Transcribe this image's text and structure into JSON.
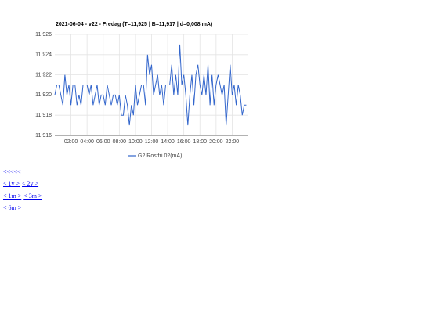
{
  "chart_data": {
    "type": "line",
    "title": "2021-06-04 - v22 - Fredag (T=11,925 | B=11,917 | d=0,008 mA)",
    "x": [
      0,
      0.25,
      0.5,
      0.75,
      1,
      1.25,
      1.5,
      1.75,
      2,
      2.25,
      2.5,
      2.75,
      3,
      3.25,
      3.5,
      3.75,
      4,
      4.25,
      4.5,
      4.75,
      5,
      5.25,
      5.5,
      5.75,
      6,
      6.25,
      6.5,
      6.75,
      7,
      7.25,
      7.5,
      7.75,
      8,
      8.25,
      8.5,
      8.75,
      9,
      9.25,
      9.5,
      9.75,
      10,
      10.25,
      10.5,
      10.75,
      11,
      11.25,
      11.5,
      11.75,
      12,
      12.25,
      12.5,
      12.75,
      13,
      13.25,
      13.5,
      13.75,
      14,
      14.25,
      14.5,
      14.75,
      15,
      15.25,
      15.5,
      15.75,
      16,
      16.25,
      16.5,
      16.75,
      17,
      17.25,
      17.5,
      17.75,
      18,
      18.25,
      18.5,
      18.75,
      19,
      19.25,
      19.5,
      19.75,
      20,
      20.25,
      20.5,
      20.75,
      21,
      21.25,
      21.5,
      21.75,
      22,
      22.25,
      22.5,
      22.75,
      23,
      23.25,
      23.5,
      23.75
    ],
    "series": [
      {
        "name": "G2 Rostfri 02(mA)",
        "color": "#3366cc",
        "values": [
          11.92,
          11.921,
          11.921,
          11.92,
          11.919,
          11.922,
          11.92,
          11.921,
          11.919,
          11.921,
          11.921,
          11.919,
          11.92,
          11.919,
          11.921,
          11.921,
          11.921,
          11.92,
          11.921,
          11.919,
          11.92,
          11.921,
          11.919,
          11.92,
          11.92,
          11.919,
          11.921,
          11.92,
          11.919,
          11.92,
          11.92,
          11.919,
          11.92,
          11.918,
          11.918,
          11.92,
          11.919,
          11.917,
          11.919,
          11.918,
          11.921,
          11.919,
          11.92,
          11.921,
          11.921,
          11.919,
          11.924,
          11.922,
          11.923,
          11.92,
          11.921,
          11.922,
          11.92,
          11.921,
          11.919,
          11.921,
          11.921,
          11.921,
          11.923,
          11.92,
          11.922,
          11.92,
          11.925,
          11.921,
          11.922,
          11.92,
          11.917,
          11.92,
          11.922,
          11.919,
          11.922,
          11.923,
          11.921,
          11.92,
          11.922,
          11.92,
          11.923,
          11.919,
          11.922,
          11.919,
          11.921,
          11.922,
          11.921,
          11.92,
          11.921,
          11.917,
          11.92,
          11.923,
          11.92,
          11.921,
          11.919,
          11.921,
          11.92,
          11.918,
          11.919,
          11.919
        ]
      }
    ],
    "xlim": [
      0,
      24
    ],
    "xticks": [
      {
        "value": 2,
        "label": "02:00"
      },
      {
        "value": 4,
        "label": "04:00"
      },
      {
        "value": 6,
        "label": "06:00"
      },
      {
        "value": 8,
        "label": "08:00"
      },
      {
        "value": 10,
        "label": "10:00"
      },
      {
        "value": 12,
        "label": "12:00"
      },
      {
        "value": 14,
        "label": "14:00"
      },
      {
        "value": 16,
        "label": "16:00"
      },
      {
        "value": 18,
        "label": "18:00"
      },
      {
        "value": 20,
        "label": "20:00"
      },
      {
        "value": 22,
        "label": "22:00"
      }
    ],
    "ylim": [
      11.916,
      11.926
    ],
    "yticks": [
      {
        "value": 11.916,
        "label": "11,916"
      },
      {
        "value": 11.918,
        "label": "11,918"
      },
      {
        "value": 11.92,
        "label": "11,920"
      },
      {
        "value": 11.922,
        "label": "11,922"
      },
      {
        "value": 11.924,
        "label": "11,924"
      },
      {
        "value": 11.926,
        "label": "11,926"
      }
    ],
    "grid": true,
    "legend": "bottom"
  },
  "links": [
    [
      "<<<<<"
    ],
    [
      "< 1v >",
      "< 2v >"
    ],
    [
      "< 1m >",
      "< 3m >"
    ],
    [
      "< 6m >"
    ]
  ]
}
